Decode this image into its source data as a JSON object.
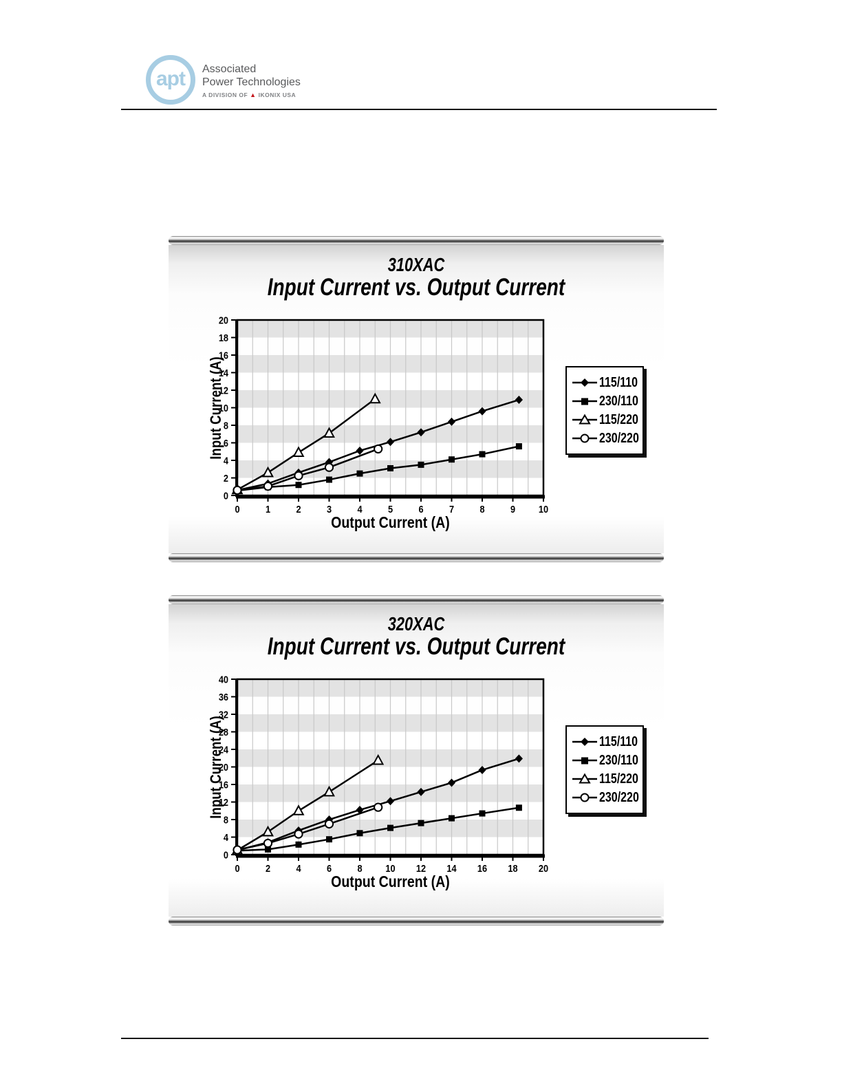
{
  "page": {
    "background": "#ffffff"
  },
  "header": {
    "logo": {
      "monogram": "apt",
      "line1": "Associated",
      "line2": "Power Technologies",
      "division_prefix": "A DIVISION OF",
      "division_suffix": "IKONIX USA",
      "brand_blue": "#a7cde3",
      "brand_red": "#c4161c",
      "text_gray": "#58595b"
    }
  },
  "chart_style": {
    "band_fill": "#e3e3e3",
    "grid_stroke": "#c8c8c8",
    "stroke": "#000000",
    "marker_open_fill": "#ffffff"
  },
  "chart_data": [
    {
      "type": "line",
      "model": "310XAC",
      "title": "Input Current vs. Output Current",
      "xlabel": "Output Current (A)",
      "ylabel": "Input Current (A)",
      "xlim": [
        0,
        10
      ],
      "xticks_step": 1,
      "xgrid_step": 0.5,
      "ylim": [
        0,
        20
      ],
      "yticks_step": 2,
      "band_step": 2,
      "grid": "vertical-only",
      "legend_position": "right",
      "series": [
        {
          "name": "115/110",
          "marker": "diamond-filled",
          "x": [
            0,
            1,
            2,
            3,
            4,
            5,
            6,
            7,
            8,
            9.2
          ],
          "y": [
            0.6,
            1.35,
            2.6,
            3.8,
            5.1,
            6.1,
            7.2,
            8.4,
            9.6,
            10.9
          ]
        },
        {
          "name": "230/110",
          "marker": "square-filled",
          "x": [
            0,
            1,
            2,
            3,
            4,
            5,
            6,
            7,
            8,
            9.2
          ],
          "y": [
            0.55,
            0.95,
            1.2,
            1.8,
            2.5,
            3.1,
            3.5,
            4.1,
            4.7,
            5.6
          ]
        },
        {
          "name": "115/220",
          "marker": "triangle-open",
          "x": [
            0,
            1,
            2,
            3,
            4.5
          ],
          "y": [
            0.65,
            2.6,
            4.9,
            7.1,
            11.0
          ]
        },
        {
          "name": "230/220",
          "marker": "circle-open",
          "x": [
            0,
            1,
            2,
            3,
            4.6
          ],
          "y": [
            0.6,
            1.05,
            2.25,
            3.2,
            5.3
          ]
        }
      ]
    },
    {
      "type": "line",
      "model": "320XAC",
      "title": "Input Current vs. Output Current",
      "xlabel": "Output Current (A)",
      "ylabel": "Input Current (A)",
      "xlim": [
        0,
        20
      ],
      "xticks_step": 2,
      "xgrid_step": 1,
      "ylim": [
        0,
        40
      ],
      "yticks_step": 4,
      "band_step": 4,
      "grid": "vertical-only",
      "legend_position": "right",
      "series": [
        {
          "name": "115/110",
          "marker": "diamond-filled",
          "x": [
            0,
            2,
            4,
            6,
            8,
            10,
            12,
            14,
            16,
            18.4
          ],
          "y": [
            1.0,
            2.8,
            5.5,
            8.0,
            10.2,
            12.2,
            14.3,
            16.4,
            19.3,
            21.9
          ]
        },
        {
          "name": "230/110",
          "marker": "square-filled",
          "x": [
            0,
            2,
            4,
            6,
            8,
            10,
            12,
            14,
            16,
            18.4
          ],
          "y": [
            0.9,
            1.2,
            2.3,
            3.5,
            4.9,
            6.1,
            7.2,
            8.3,
            9.4,
            10.7
          ]
        },
        {
          "name": "115/220",
          "marker": "triangle-open",
          "x": [
            0,
            2,
            4,
            6,
            9.2
          ],
          "y": [
            1.0,
            5.2,
            10.0,
            14.3,
            21.5
          ]
        },
        {
          "name": "230/220",
          "marker": "circle-open",
          "x": [
            0,
            2,
            4,
            6,
            9.2
          ],
          "y": [
            1.1,
            2.6,
            4.7,
            7.0,
            10.8
          ]
        }
      ]
    }
  ]
}
